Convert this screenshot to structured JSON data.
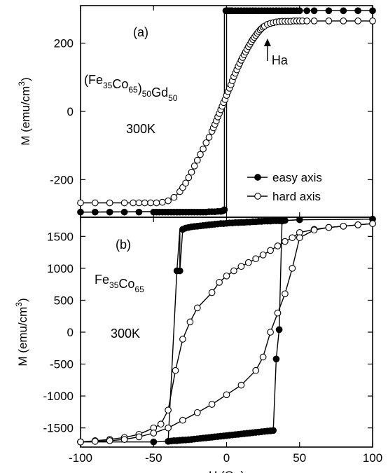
{
  "chart_data": [
    {
      "panel": "(a)",
      "type": "scatter",
      "xlim": [
        -100,
        100
      ],
      "ylim": [
        -310,
        310
      ],
      "yticks": [
        -200,
        0,
        200
      ],
      "ylabel_text": "M  (emu/cm",
      "ylabel_sup": "3",
      "ylabel_close": ")",
      "annotations": {
        "label": "(a)",
        "sample_parts": [
          [
            "(Fe",
            "n"
          ],
          [
            "35",
            "s"
          ],
          [
            "Co",
            "n"
          ],
          [
            "65",
            "s"
          ],
          [
            ")",
            "n"
          ],
          [
            "50",
            "s"
          ],
          [
            "Gd",
            "n"
          ],
          [
            "50",
            "s"
          ]
        ],
        "temperature": "300K",
        "arrow_label": "Ha",
        "arrow_x": 28
      },
      "legend": {
        "position": "bottom-right"
      },
      "series": [
        {
          "name": "easy axis",
          "marker": "filled",
          "segments": [
            {
              "x": [
                -100,
                -90,
                -80,
                -70,
                -60,
                -50,
                -48,
                -46,
                -44,
                -42,
                -40,
                -38,
                -36,
                -34,
                -32,
                -30,
                -28,
                -26,
                -24,
                -22,
                -20,
                -18,
                -16,
                -14,
                -12,
                -10,
                -8,
                -6,
                -4,
                -3,
                -2,
                -1.5
              ],
              "y": [
                -295,
                -295,
                -295,
                -295,
                -295,
                -295,
                -295,
                -295,
                -295,
                -295,
                -295,
                -295,
                -295,
                -295,
                -295,
                -295,
                -295,
                -295,
                -295,
                -295,
                -295,
                -295,
                -295,
                -295,
                -294,
                -294,
                -294,
                -293,
                -293,
                -292,
                -290,
                -288
              ]
            },
            {
              "x": [
                -0.5,
                0,
                1,
                2,
                3,
                4,
                6,
                8,
                10,
                12,
                14,
                16,
                18,
                20,
                22,
                24,
                26,
                28,
                30,
                32,
                34,
                36,
                38,
                40,
                42,
                44,
                46,
                48,
                50,
                55,
                60,
                70,
                80,
                90,
                100
              ],
              "y": [
                295,
                295,
                295,
                295,
                295,
                295,
                295,
                295,
                295,
                295,
                295,
                295,
                295,
                295,
                295,
                295,
                295,
                295,
                295,
                295,
                295,
                295,
                295,
                295,
                295,
                295,
                295,
                295,
                295,
                295,
                295,
                295,
                295,
                295,
                295
              ]
            }
          ],
          "line_path": [
            [
              -100,
              -295
            ],
            [
              -1.5,
              -292
            ],
            [
              -1.5,
              295
            ],
            [
              100,
              295
            ]
          ],
          "line_path2": [
            [
              -100,
              -295
            ],
            [
              0,
              -293
            ],
            [
              0,
              295
            ],
            [
              100,
              295
            ]
          ]
        },
        {
          "name": "hard axis",
          "marker": "open",
          "x": [
            -100,
            -90,
            -80,
            -70,
            -64,
            -60,
            -56,
            -52,
            -48,
            -44,
            -40,
            -36,
            -32,
            -30,
            -28,
            -26,
            -24,
            -22,
            -20,
            -18,
            -16,
            -14,
            -12,
            -10,
            -9,
            -8,
            -7,
            -6,
            -5,
            -4,
            -3,
            -2,
            -1,
            0,
            1,
            2,
            3,
            4,
            5,
            6,
            7,
            8,
            9,
            10,
            11,
            12,
            13,
            14,
            15,
            16,
            17,
            18,
            19,
            20,
            21,
            22,
            23,
            24,
            25,
            26,
            28,
            30,
            32,
            34,
            36,
            38,
            40,
            42,
            44,
            46,
            48,
            50,
            52,
            55,
            60,
            70,
            80,
            90,
            100
          ],
          "y": [
            -268,
            -268,
            -268,
            -268,
            -268,
            -268,
            -268,
            -268,
            -268,
            -266,
            -262,
            -252,
            -235,
            -223,
            -210,
            -194,
            -178,
            -160,
            -143,
            -126,
            -110,
            -92,
            -76,
            -58,
            -48,
            -38,
            -28,
            -16,
            -6,
            5,
            15,
            26,
            35,
            47,
            58,
            68,
            78,
            90,
            102,
            112,
            122,
            132,
            141,
            150,
            158,
            166,
            174,
            182,
            190,
            197,
            204,
            211,
            217,
            223,
            229,
            234,
            239,
            243,
            247,
            250,
            255,
            258,
            260,
            262,
            263,
            264,
            264,
            264,
            264,
            265,
            265,
            265,
            265,
            265,
            265,
            265,
            265,
            265,
            265
          ]
        }
      ]
    },
    {
      "panel": "(b)",
      "type": "scatter",
      "xlim": [
        -100,
        100
      ],
      "ylim": [
        -1800,
        1800
      ],
      "yticks": [
        -1500,
        -1000,
        -500,
        0,
        500,
        1000,
        1500
      ],
      "xticks": [
        -100,
        -50,
        0,
        50,
        100
      ],
      "xlabel": "H (Oe)",
      "ylabel_text": "M  (emu/cm",
      "ylabel_sup": "3",
      "ylabel_close": ")",
      "annotations": {
        "label": "(b)",
        "sample_parts": [
          [
            "Fe",
            "n"
          ],
          [
            "35",
            "s"
          ],
          [
            "Co",
            "n"
          ],
          [
            "65",
            "s"
          ]
        ],
        "temperature": "300K"
      },
      "series": [
        {
          "name": "easy axis",
          "marker": "filled",
          "x": [
            -100,
            -50,
            -40,
            -38,
            -36,
            -34,
            -32,
            -30,
            -28,
            -26,
            -24,
            -22,
            -20,
            -18,
            -16,
            -14,
            -12,
            -10,
            -8,
            -6,
            -4,
            -2,
            0,
            2,
            4,
            6,
            8,
            10,
            12,
            14,
            16,
            18,
            20,
            22,
            24,
            26,
            28,
            30,
            32,
            34,
            36,
            38,
            40,
            50,
            100
          ],
          "y": [
            -1720,
            -1720,
            -1710,
            -1705,
            -1700,
            -1700,
            -1695,
            -1690,
            -1688,
            -1685,
            -1680,
            -1675,
            -1670,
            -1665,
            -1660,
            -1655,
            -1650,
            -1645,
            -1640,
            -1635,
            -1630,
            -1625,
            -1620,
            -1615,
            -1610,
            -1605,
            -1600,
            -1595,
            -1590,
            -1585,
            -1580,
            -1575,
            -1570,
            -1565,
            -1560,
            -1555,
            -1550,
            -1545,
            -1540,
            -420,
            40,
            1740,
            1750,
            1760,
            1770
          ],
          "x2": [
            -32,
            -30,
            -28,
            -26,
            -24,
            -22,
            -20,
            -18,
            -16,
            -14,
            -12,
            -10,
            -8,
            -6,
            -4,
            -2,
            0,
            2,
            4,
            6,
            8,
            10,
            12,
            14,
            16,
            18,
            20,
            22,
            24,
            26,
            28,
            30,
            32,
            34,
            36,
            38
          ],
          "y2": [
            960,
            1610,
            1630,
            1640,
            1650,
            1655,
            1660,
            1665,
            1670,
            1675,
            1680,
            1685,
            1690,
            1695,
            1700,
            1700,
            1705,
            1710,
            1710,
            1715,
            1715,
            1720,
            1720,
            1725,
            1725,
            1730,
            1730,
            1735,
            1735,
            1740,
            1740,
            1740,
            1745,
            1745,
            1745,
            1745
          ]
        },
        {
          "name": "hard axis",
          "marker": "open",
          "x_upper": [
            -100,
            -90,
            -80,
            -70,
            -60,
            -50,
            -45,
            -40,
            -35,
            -30,
            -25,
            -20,
            -10,
            -5,
            0,
            5,
            10,
            15,
            20,
            25,
            30,
            35,
            40,
            45,
            50,
            60,
            70,
            80,
            90,
            100
          ],
          "y_upper": [
            -1720,
            -1700,
            -1680,
            -1650,
            -1600,
            -1500,
            -1440,
            -1220,
            -600,
            -110,
            160,
            380,
            620,
            780,
            880,
            960,
            1030,
            1090,
            1150,
            1210,
            1280,
            1350,
            1420,
            1480,
            1560,
            1610,
            1640,
            1660,
            1680,
            1700
          ],
          "x_lower": [
            -100,
            -90,
            -80,
            -70,
            -60,
            -50,
            -40,
            -30,
            -20,
            -10,
            0,
            10,
            20,
            25,
            30,
            35,
            40,
            45,
            50,
            60,
            70,
            80,
            90,
            100
          ],
          "y_lower": [
            -1720,
            -1710,
            -1700,
            -1680,
            -1640,
            -1580,
            -1500,
            -1380,
            -1260,
            -1130,
            -980,
            -830,
            -600,
            -390,
            0,
            300,
            600,
            1000,
            1480,
            1600,
            1640,
            1660,
            1680,
            1700
          ]
        }
      ],
      "legend_entries": [
        "easy axis",
        "hard axis"
      ]
    }
  ]
}
